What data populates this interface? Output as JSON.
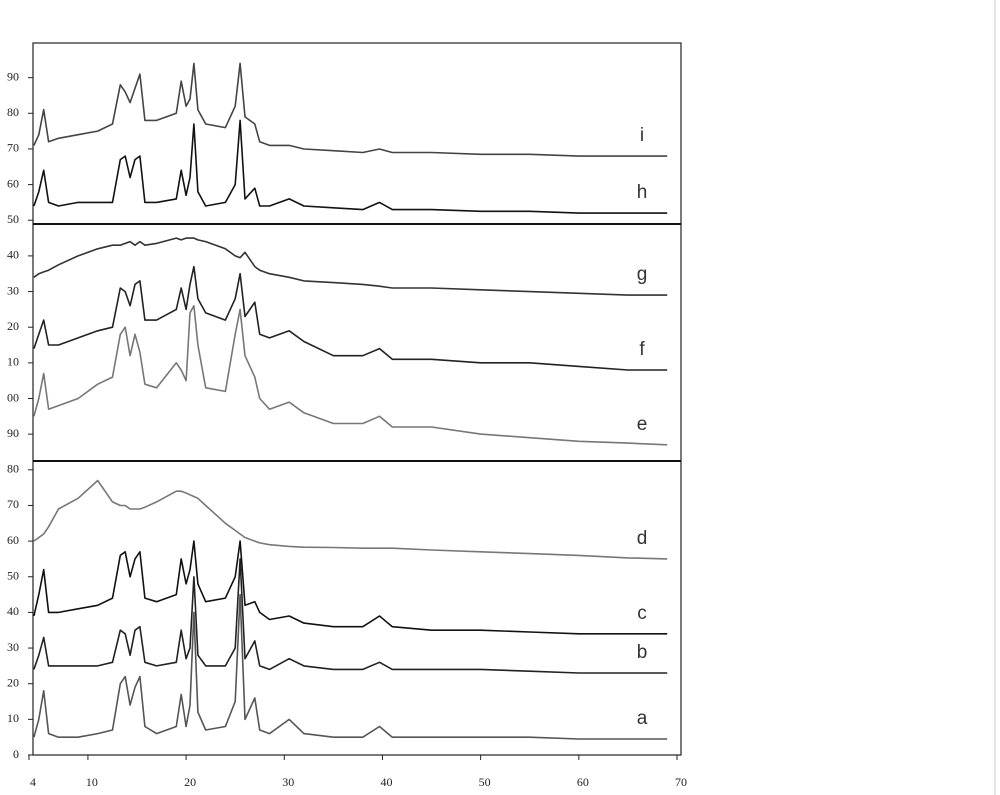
{
  "chart_data": {
    "type": "line",
    "x": [
      4.5,
      5,
      5.5,
      6,
      7,
      9,
      11,
      12.5,
      13.3,
      13.8,
      14.3,
      14.8,
      15.3,
      15.8,
      17,
      19,
      19.5,
      20,
      20.4,
      20.8,
      21.2,
      22,
      24,
      25,
      25.5,
      26,
      27,
      27.5,
      28.5,
      30.5,
      32,
      35,
      38,
      39.7,
      41,
      45,
      50,
      55,
      60,
      65,
      69
    ],
    "xlim": [
      4,
      70
    ],
    "xticks": [
      4,
      10,
      20,
      30,
      40,
      50,
      60,
      70
    ],
    "ylim": [
      0,
      200
    ],
    "yticks": [
      0,
      10,
      20,
      30,
      40,
      50,
      60,
      70,
      80,
      90,
      {
        "value": 100,
        "label": "00"
      },
      {
        "value": 110,
        "label": "10"
      },
      {
        "value": 120,
        "label": "20"
      },
      {
        "value": 130,
        "label": "30"
      },
      {
        "value": 140,
        "label": "40"
      },
      {
        "value": 150,
        "label": "50"
      },
      {
        "value": 160,
        "label": "60"
      },
      {
        "value": 170,
        "label": "70"
      },
      {
        "value": 180,
        "label": "80"
      },
      {
        "value": 190,
        "label": "90"
      }
    ],
    "series": [
      {
        "name": "a",
        "color": "#555555",
        "values": [
          5,
          10,
          18,
          6,
          5,
          5,
          6,
          7,
          20,
          22,
          14,
          19,
          22,
          8,
          6,
          8,
          17,
          8,
          14,
          40,
          12,
          7,
          8,
          15,
          45,
          10,
          16,
          7,
          6,
          10,
          6,
          5,
          5,
          8,
          5,
          5,
          5,
          5,
          4.5,
          4.5,
          4.5
        ]
      },
      {
        "name": "b",
        "color": "#222222",
        "values": [
          24,
          28,
          33,
          25,
          25,
          25,
          25,
          26,
          35,
          34,
          28,
          35,
          36,
          26,
          25,
          26,
          35,
          27,
          30,
          50,
          28,
          25,
          25,
          30,
          55,
          27,
          32,
          25,
          24,
          27,
          25,
          24,
          24,
          26,
          24,
          24,
          24,
          23.5,
          23,
          23,
          23
        ]
      },
      {
        "name": "c",
        "color": "#111111",
        "values": [
          39,
          45,
          52,
          40,
          40,
          41,
          42,
          44,
          56,
          57,
          50,
          55,
          57,
          44,
          43,
          45,
          55,
          48,
          52,
          60,
          48,
          43,
          44,
          50,
          60,
          42,
          43,
          40,
          38,
          39,
          37,
          36,
          36,
          39,
          36,
          35,
          35,
          34.5,
          34,
          34,
          34
        ]
      },
      {
        "name": "d",
        "color": "#777777",
        "values": [
          60,
          61,
          62,
          64,
          69,
          72,
          77,
          71,
          70,
          70,
          69,
          69,
          69,
          69.5,
          71,
          74,
          74,
          73.5,
          73,
          72.5,
          72,
          70,
          65,
          63,
          62,
          61,
          60,
          59.5,
          59,
          58.5,
          58.3,
          58.2,
          58,
          58,
          58,
          57.5,
          57,
          56.5,
          56,
          55.3,
          55
        ]
      },
      {
        "name": "e",
        "color": "#777777",
        "values": [
          95,
          100,
          107,
          97,
          98,
          100,
          104,
          106,
          118,
          120,
          112,
          118,
          113,
          104,
          103,
          110,
          108,
          105,
          124,
          126,
          115,
          103,
          102,
          118,
          125,
          112,
          106,
          100,
          97,
          99,
          96,
          93,
          93,
          95,
          92,
          92,
          90,
          89,
          88,
          87.5,
          87
        ]
      },
      {
        "name": "f",
        "color": "#222222",
        "values": [
          114,
          118,
          122,
          115,
          115,
          117,
          119,
          120,
          131,
          130,
          126,
          132,
          133,
          122,
          122,
          125,
          131,
          125,
          132,
          137,
          128,
          124,
          122,
          128,
          135,
          123,
          127,
          118,
          117,
          119,
          116,
          112,
          112,
          114,
          111,
          111,
          110,
          110,
          109,
          108,
          108
        ]
      },
      {
        "name": "g",
        "color": "#333333",
        "values": [
          134,
          135,
          135.5,
          136,
          137.5,
          140,
          142,
          143,
          143,
          143.5,
          144,
          143,
          144,
          143,
          143.5,
          145,
          144.5,
          145,
          145,
          145,
          144.5,
          144,
          142,
          140,
          139.5,
          141,
          137,
          136,
          135,
          134,
          133,
          132.5,
          132,
          131.5,
          131,
          131,
          130.5,
          130,
          129.5,
          129,
          129
        ]
      },
      {
        "name": "h",
        "color": "#111111",
        "values": [
          154,
          158,
          164,
          155,
          154,
          155,
          155,
          155,
          167,
          168,
          162,
          167,
          168,
          155,
          155,
          156,
          164,
          157,
          162,
          177,
          158,
          154,
          155,
          160,
          178,
          156,
          159,
          154,
          154,
          156,
          154,
          153.5,
          153,
          155,
          153,
          153,
          152.5,
          152.5,
          152,
          152,
          152
        ]
      },
      {
        "name": "i",
        "color": "#444444",
        "values": [
          171,
          174,
          181,
          172,
          173,
          174,
          175,
          177,
          188,
          186,
          183,
          187,
          191,
          178,
          178,
          180,
          189,
          182,
          184,
          194,
          181,
          177,
          176,
          182,
          194,
          179,
          177,
          172,
          171,
          171,
          170,
          169.5,
          169,
          170,
          169,
          169,
          168.5,
          168.5,
          168,
          168,
          168
        ]
      }
    ]
  }
}
